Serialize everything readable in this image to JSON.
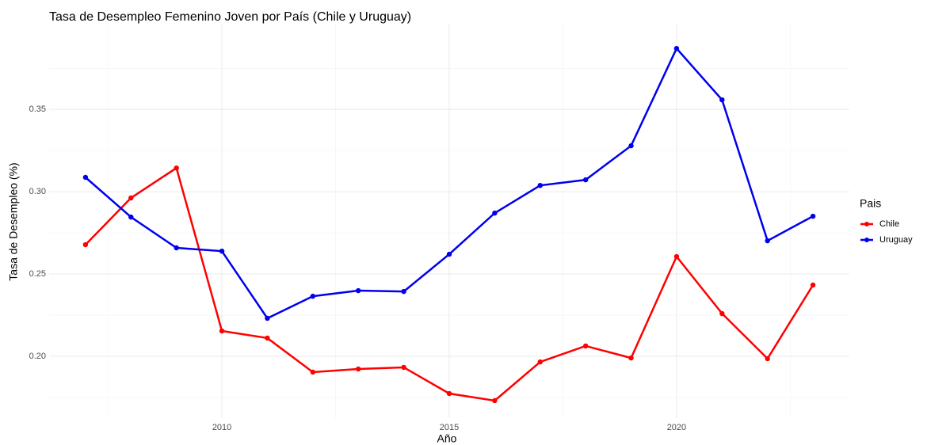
{
  "chart_data": {
    "type": "line",
    "title": "Tasa de Desempleo Femenino Joven por País (Chile y Uruguay)",
    "x_label": "Año",
    "y_label": "Tasa de Desempleo (%)",
    "legend_title": "Pais",
    "x": [
      2007,
      2008,
      2009,
      2010,
      2011,
      2012,
      2013,
      2014,
      2015,
      2016,
      2017,
      2018,
      2019,
      2020,
      2021,
      2022,
      2023
    ],
    "series": [
      {
        "name": "Chile",
        "color": "#ff0000",
        "values": [
          0.2678,
          0.2962,
          0.3144,
          0.2154,
          0.2111,
          0.1904,
          0.1923,
          0.1933,
          0.1774,
          0.1731,
          0.1966,
          0.2063,
          0.199,
          0.2606,
          0.226,
          0.1986,
          0.2433
        ]
      },
      {
        "name": "Uruguay",
        "color": "#0000ee",
        "values": [
          0.3087,
          0.2846,
          0.2659,
          0.2639,
          0.2231,
          0.2365,
          0.2399,
          0.2394,
          0.262,
          0.287,
          0.3038,
          0.3072,
          0.3279,
          0.387,
          0.3558,
          0.2702,
          0.2851
        ]
      }
    ],
    "xlim": [
      2006.2,
      2023.8
    ],
    "xticks": [
      2010,
      2015,
      2020
    ],
    "ylim": [
      0.1625,
      0.402
    ],
    "yticks": [
      {
        "value": 0.2,
        "label": "0.20"
      },
      {
        "value": 0.25,
        "label": "0.25"
      },
      {
        "value": 0.3,
        "label": "0.30"
      },
      {
        "value": 0.35,
        "label": "0.35"
      }
    ],
    "grid": true,
    "legend": "right"
  }
}
